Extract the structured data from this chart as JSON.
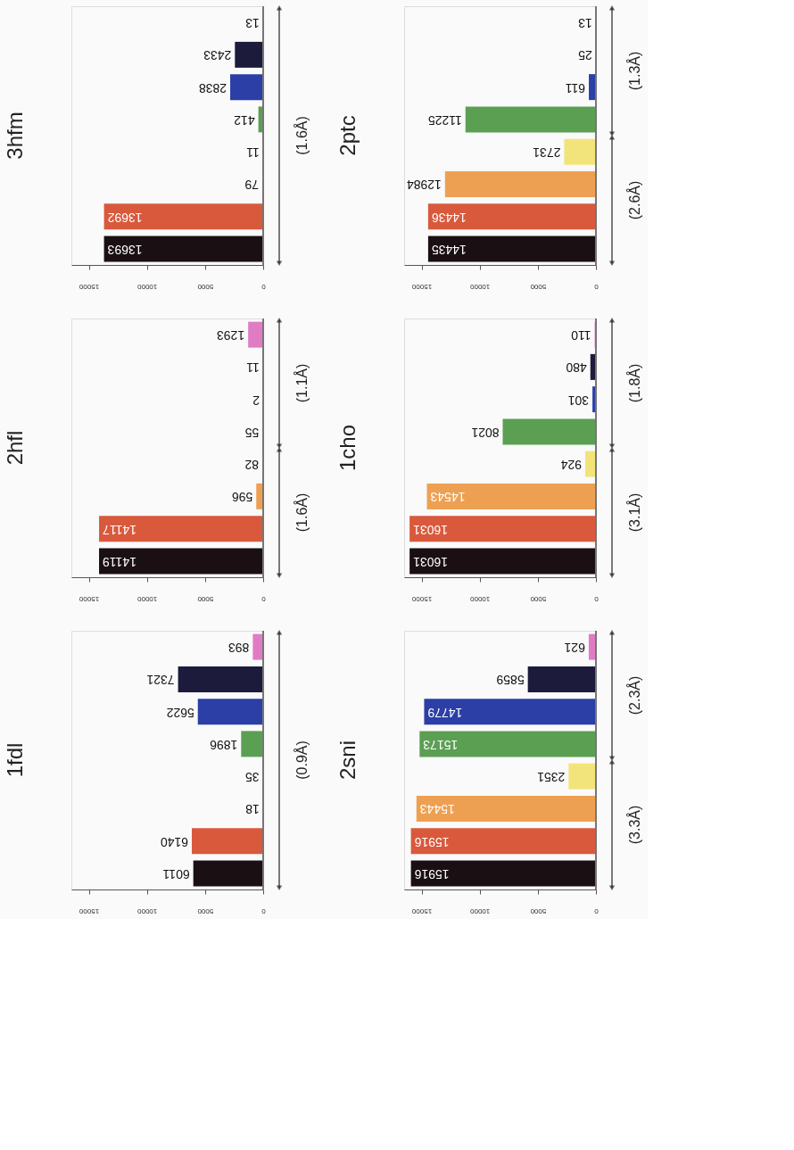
{
  "chart_data": [
    {
      "type": "bar",
      "orientation": "horizontal",
      "title": "3hfm",
      "categories": [
        null,
        null,
        null,
        null,
        null,
        null,
        null,
        null
      ],
      "values": [
        13,
        2433,
        2838,
        412,
        11,
        79,
        13692,
        13693
      ],
      "colors": [
        "#e07cc4",
        "#1d1b3c",
        "#2b3fa6",
        "#5b9f52",
        "#f2e47a",
        "#eea052",
        "#d9593c",
        "#1a1014"
      ],
      "xlim": [
        16500,
        0
      ],
      "xticks": [
        15000,
        10000,
        5000,
        0
      ],
      "data_labels": true,
      "grid": false,
      "annotations": [
        "(1.6Å)"
      ]
    },
    {
      "type": "bar",
      "orientation": "horizontal",
      "title": "2ptc",
      "categories": [
        null,
        null,
        null,
        null,
        null,
        null,
        null,
        null
      ],
      "values": [
        13,
        25,
        611,
        11225,
        2731,
        12984,
        14436,
        14435
      ],
      "colors": [
        "#e07cc4",
        "#1d1b3c",
        "#2b3fa6",
        "#5b9f52",
        "#f2e47a",
        "#eea052",
        "#d9593c",
        "#1a1014"
      ],
      "xlim": [
        16500,
        0
      ],
      "xticks": [
        15000,
        10000,
        5000,
        0
      ],
      "data_labels": true,
      "grid": false,
      "annotations": [
        "(1.3Å)",
        "(2.6Å)"
      ]
    },
    {
      "type": "bar",
      "orientation": "horizontal",
      "title": "2hfl",
      "categories": [
        null,
        null,
        null,
        null,
        null,
        null,
        null,
        null
      ],
      "values": [
        1293,
        11,
        2,
        55,
        82,
        596,
        14117,
        14119
      ],
      "colors": [
        "#e07cc4",
        "#1d1b3c",
        "#2b3fa6",
        "#5b9f52",
        "#f2e47a",
        "#eea052",
        "#d9593c",
        "#1a1014"
      ],
      "xlim": [
        16500,
        0
      ],
      "xticks": [
        15000,
        10000,
        5000,
        0
      ],
      "data_labels": true,
      "grid": false,
      "annotations": [
        "(1.1Å)",
        "(1.6Å)"
      ]
    },
    {
      "type": "bar",
      "orientation": "horizontal",
      "title": "1cho",
      "categories": [
        null,
        null,
        null,
        null,
        null,
        null,
        null,
        null
      ],
      "values": [
        110,
        480,
        301,
        8021,
        924,
        14543,
        16031,
        16031
      ],
      "colors": [
        "#e07cc4",
        "#1d1b3c",
        "#2b3fa6",
        "#5b9f52",
        "#f2e47a",
        "#eea052",
        "#d9593c",
        "#1a1014"
      ],
      "xlim": [
        16500,
        0
      ],
      "xticks": [
        15000,
        10000,
        5000,
        0
      ],
      "data_labels": true,
      "grid": false,
      "annotations": [
        "(1.8Å)",
        "(3.1Å)"
      ]
    },
    {
      "type": "bar",
      "orientation": "horizontal",
      "title": "1fdl",
      "categories": [
        null,
        null,
        null,
        null,
        null,
        null,
        null,
        null
      ],
      "values": [
        893,
        7321,
        5622,
        1896,
        35,
        18,
        6140,
        6011
      ],
      "colors": [
        "#e07cc4",
        "#1d1b3c",
        "#2b3fa6",
        "#5b9f52",
        "#f2e47a",
        "#eea052",
        "#d9593c",
        "#1a1014"
      ],
      "xlim": [
        16500,
        0
      ],
      "xticks": [
        15000,
        10000,
        5000,
        0
      ],
      "data_labels": true,
      "grid": false,
      "annotations": [
        "(0.9Å)"
      ]
    },
    {
      "type": "bar",
      "orientation": "horizontal",
      "title": "2sni",
      "categories": [
        null,
        null,
        null,
        null,
        null,
        null,
        null,
        null
      ],
      "values": [
        621,
        5859,
        14779,
        15173,
        2351,
        15443,
        15916,
        15916
      ],
      "colors": [
        "#e07cc4",
        "#1d1b3c",
        "#2b3fa6",
        "#5b9f52",
        "#f2e47a",
        "#eea052",
        "#d9593c",
        "#1a1014"
      ],
      "xlim": [
        16500,
        0
      ],
      "xticks": [
        15000,
        10000,
        5000,
        0
      ],
      "data_labels": true,
      "grid": false,
      "annotations": [
        "(2.3Å)",
        "(3.3Å)"
      ]
    }
  ]
}
